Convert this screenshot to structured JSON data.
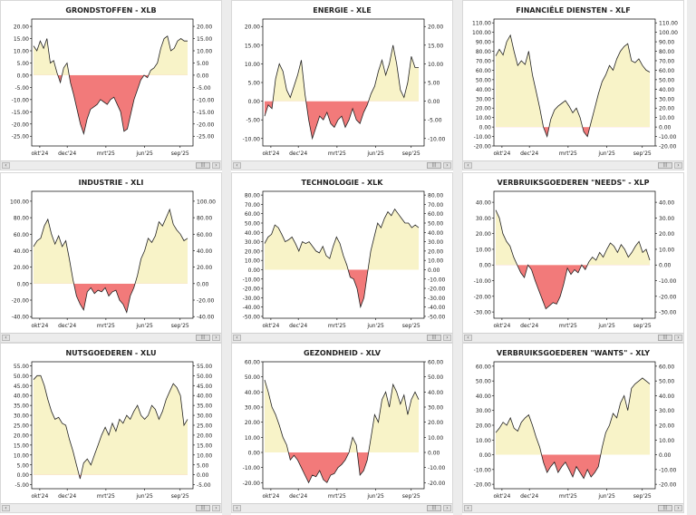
{
  "colors": {
    "positive_fill": "#f8f3c8",
    "negative_fill": "#f27a7a",
    "line": "#222222",
    "axis": "#000000"
  },
  "x_labels": [
    "okt'24",
    "dec'24",
    "mrt'25",
    "jun'25",
    "sep'25"
  ],
  "chart_data": [
    {
      "type": "area",
      "title": "GRONDSTOFFEN - XLB",
      "y_ticks": [
        "20.00",
        "15.00",
        "10.00",
        "5.00",
        "0.00",
        "-5.00",
        "-10.00",
        "-15.00",
        "-20.00",
        "-25.00"
      ],
      "ylim": [
        -29,
        23
      ],
      "values": [
        12,
        10,
        14,
        11,
        15,
        5,
        6,
        1,
        -3,
        3,
        5,
        -3,
        -8,
        -14,
        -20,
        -24,
        -18,
        -14,
        -13,
        -12,
        -10,
        -11,
        -12,
        -10,
        -9,
        -12,
        -15,
        -23,
        -22,
        -16,
        -10,
        -6,
        -2,
        0,
        -1,
        2,
        3,
        5,
        11,
        15,
        16,
        10,
        11,
        14,
        15,
        14,
        14
      ]
    },
    {
      "type": "area",
      "title": "ENERGIE - XLE",
      "y_ticks": [
        "20.00",
        "15.00",
        "10.00",
        "5.00",
        "0.00",
        "-5.00",
        "-10.00"
      ],
      "ylim": [
        -12,
        22
      ],
      "values": [
        -4,
        -1,
        -2,
        6,
        10,
        8,
        3,
        1,
        4,
        7,
        11,
        2,
        -5,
        -10,
        -7,
        -4,
        -5,
        -3,
        -6,
        -7,
        -5,
        -4,
        -7,
        -5,
        -2,
        -5,
        -6,
        -3,
        -1,
        2,
        4,
        8,
        11,
        7,
        10,
        15,
        10,
        3,
        1,
        5,
        12,
        9,
        9
      ]
    },
    {
      "type": "area",
      "title": "FINANCIËLE DIENSTEN - XLF",
      "y_ticks": [
        "110.00",
        "100.00",
        "90.00",
        "80.00",
        "70.00",
        "60.00",
        "50.00",
        "40.00",
        "30.00",
        "20.00",
        "10.00",
        "0.00",
        "-10.00",
        "-20.00"
      ],
      "ylim": [
        -20,
        114
      ],
      "values": [
        75,
        82,
        76,
        90,
        97,
        80,
        65,
        70,
        66,
        80,
        55,
        38,
        20,
        0,
        -10,
        8,
        18,
        22,
        25,
        28,
        22,
        15,
        20,
        10,
        -5,
        -10,
        5,
        20,
        35,
        48,
        55,
        65,
        60,
        72,
        80,
        85,
        88,
        70,
        68,
        72,
        65,
        60,
        58
      ]
    },
    {
      "type": "area",
      "title": "INDUSTRIE - XLI",
      "y_ticks": [
        "100.00",
        "80.00",
        "60.00",
        "40.00",
        "20.00",
        "0.00",
        "-20.00",
        "-40.00"
      ],
      "ylim": [
        -42,
        112
      ],
      "values": [
        45,
        52,
        55,
        70,
        78,
        60,
        48,
        58,
        45,
        52,
        30,
        5,
        -15,
        -25,
        -32,
        -10,
        -5,
        -12,
        -8,
        -10,
        -5,
        -15,
        -10,
        -8,
        -20,
        -25,
        -35,
        -15,
        -5,
        10,
        30,
        40,
        55,
        50,
        58,
        75,
        70,
        80,
        90,
        72,
        65,
        60,
        52,
        55
      ]
    },
    {
      "type": "area",
      "title": "TECHNOLOGIE - XLK",
      "y_ticks": [
        "80.00",
        "70.00",
        "60.00",
        "50.00",
        "40.00",
        "30.00",
        "20.00",
        "10.00",
        "0.00",
        "-10.00",
        "-20.00",
        "-30.00",
        "-40.00",
        "-50.00"
      ],
      "ylim": [
        -52,
        84
      ],
      "values": [
        28,
        35,
        38,
        48,
        45,
        38,
        30,
        32,
        35,
        28,
        20,
        30,
        28,
        30,
        25,
        20,
        18,
        25,
        15,
        12,
        25,
        35,
        28,
        15,
        5,
        -8,
        -10,
        -20,
        -40,
        -30,
        -5,
        20,
        35,
        50,
        45,
        55,
        62,
        58,
        65,
        60,
        55,
        50,
        50,
        45,
        48,
        45
      ]
    },
    {
      "type": "area",
      "title": "VERBRUIKSGOEDEREN \"NEEDS\" - XLP",
      "y_ticks": [
        "40.00",
        "30.00",
        "20.00",
        "10.00",
        "0.00",
        "-10.00",
        "-20.00",
        "-30.00"
      ],
      "ylim": [
        -34,
        47
      ],
      "values": [
        35,
        30,
        20,
        15,
        12,
        5,
        0,
        -5,
        -8,
        0,
        -3,
        -10,
        -16,
        -22,
        -28,
        -26,
        -24,
        -25,
        -20,
        -12,
        -2,
        -6,
        -3,
        -5,
        0,
        -3,
        2,
        5,
        3,
        8,
        5,
        10,
        14,
        12,
        8,
        13,
        10,
        5,
        8,
        12,
        15,
        8,
        10,
        3
      ]
    },
    {
      "type": "area",
      "title": "NUTSGOEDEREN - XLU",
      "y_ticks": [
        "55.00",
        "50.00",
        "45.00",
        "40.00",
        "35.00",
        "30.00",
        "25.00",
        "20.00",
        "15.00",
        "10.00",
        "5.00",
        "0.00",
        "-5.00"
      ],
      "ylim": [
        -7,
        57
      ],
      "values": [
        48,
        50,
        50,
        45,
        38,
        32,
        28,
        29,
        26,
        25,
        18,
        12,
        5,
        -2,
        6,
        8,
        5,
        10,
        15,
        20,
        24,
        20,
        26,
        22,
        28,
        26,
        30,
        28,
        32,
        35,
        30,
        28,
        30,
        35,
        33,
        28,
        32,
        38,
        42,
        46,
        44,
        40,
        25,
        28
      ]
    },
    {
      "type": "area",
      "title": "GEZONDHEID - XLV",
      "y_ticks": [
        "60.00",
        "50.00",
        "40.00",
        "30.00",
        "20.00",
        "10.00",
        "0.00",
        "-10.00",
        "-20.00"
      ],
      "ylim": [
        -24,
        60
      ],
      "values": [
        48,
        40,
        30,
        25,
        18,
        10,
        5,
        -5,
        -2,
        -5,
        -10,
        -15,
        -20,
        -15,
        -16,
        -12,
        -18,
        -20,
        -15,
        -14,
        -10,
        -8,
        -5,
        0,
        10,
        5,
        -15,
        -12,
        -5,
        10,
        25,
        20,
        35,
        40,
        30,
        45,
        40,
        32,
        38,
        25,
        35,
        40,
        35
      ]
    },
    {
      "type": "area",
      "title": "VERBRUIKSGOEDEREN \"WANTS\" - XLY",
      "y_ticks": [
        "60.00",
        "50.00",
        "40.00",
        "30.00",
        "20.00",
        "10.00",
        "0.00",
        "-10.00",
        "-20.00"
      ],
      "ylim": [
        -23,
        63
      ],
      "values": [
        15,
        18,
        22,
        20,
        25,
        18,
        16,
        22,
        25,
        27,
        20,
        12,
        5,
        -5,
        -12,
        -8,
        -5,
        -12,
        -8,
        -5,
        -10,
        -15,
        -8,
        -12,
        -16,
        -10,
        -15,
        -12,
        -8,
        5,
        15,
        20,
        28,
        25,
        35,
        40,
        30,
        45,
        48,
        50,
        52,
        50,
        48
      ]
    }
  ]
}
